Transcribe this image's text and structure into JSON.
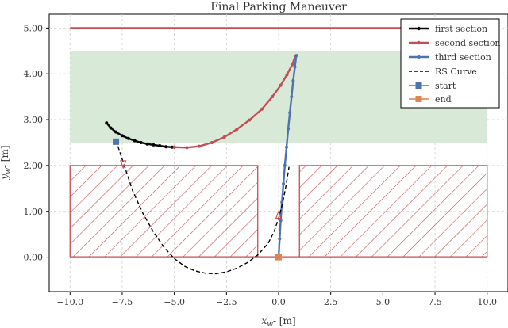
{
  "chart_data": {
    "type": "line",
    "title": "Final Parking Maneuver",
    "xlabel": "x_w- [m]",
    "ylabel": "y_w- [m]",
    "xlim": [
      -11.0,
      11.0
    ],
    "ylim": [
      -0.75,
      5.3
    ],
    "xticks": [
      -10.0,
      -7.5,
      -5.0,
      -2.5,
      0.0,
      2.5,
      5.0,
      7.5,
      10.0
    ],
    "xtick_labels": [
      "−10.0",
      "−7.5",
      "−5.0",
      "−2.5",
      "0.0",
      "2.5",
      "5.0",
      "7.5",
      "10.0"
    ],
    "yticks": [
      0.0,
      1.0,
      2.0,
      3.0,
      4.0,
      5.0
    ],
    "ytick_labels": [
      "0.00",
      "1.00",
      "2.00",
      "3.00",
      "4.00",
      "5.00"
    ],
    "grid": true,
    "legend_position": "top-right",
    "colors": {
      "first_section": "#000000",
      "second_section": "#c44e52",
      "third_section": "#4c72b0",
      "rs_curve": "#000000",
      "start": "#4c72b0",
      "end": "#dd8452",
      "road_line": "#c44e52",
      "target_region_fill": "#d6e8d6",
      "obstacle": "#c44e52"
    },
    "regions": {
      "target_region": {
        "x": [
          -10.0,
          10.0
        ],
        "y": [
          2.5,
          4.5
        ]
      },
      "road_top_line": {
        "x": [
          -10.0,
          10.0
        ],
        "y": 5.0
      },
      "road_bottom_line": {
        "x": [
          -10.0,
          10.0
        ],
        "y": 0.0
      },
      "obstacles": [
        {
          "x": [
            -10.0,
            -1.0
          ],
          "y": [
            0.0,
            2.0
          ]
        },
        {
          "x": [
            1.0,
            10.0
          ],
          "y": [
            0.0,
            2.0
          ]
        }
      ]
    },
    "series": [
      {
        "name": "first section",
        "style": "solid-dot",
        "x": [
          -8.25,
          -8.05,
          -7.8,
          -7.5,
          -7.2,
          -6.9,
          -6.6,
          -6.3,
          -6.0,
          -5.7,
          -5.4,
          -5.1,
          -5.0
        ],
        "y": [
          2.93,
          2.82,
          2.73,
          2.65,
          2.59,
          2.54,
          2.5,
          2.47,
          2.45,
          2.43,
          2.41,
          2.4,
          2.4
        ]
      },
      {
        "name": "second section",
        "style": "solid-dot",
        "x": [
          -5.0,
          -4.4,
          -3.8,
          -3.2,
          -2.6,
          -2.0,
          -1.4,
          -0.8,
          -0.3,
          0.1,
          0.4,
          0.65,
          0.8
        ],
        "y": [
          2.4,
          2.39,
          2.42,
          2.5,
          2.62,
          2.79,
          2.99,
          3.23,
          3.5,
          3.75,
          3.98,
          4.2,
          4.38
        ]
      },
      {
        "name": "third section",
        "style": "solid-dot",
        "x": [
          0.0,
          0.05,
          0.1,
          0.16,
          0.23,
          0.3,
          0.38,
          0.46,
          0.54,
          0.62,
          0.7,
          0.78,
          0.85
        ],
        "y": [
          0.0,
          0.4,
          0.8,
          1.2,
          1.6,
          2.0,
          2.4,
          2.8,
          3.15,
          3.5,
          3.85,
          4.15,
          4.4
        ]
      },
      {
        "name": "RS Curve",
        "style": "dashed",
        "x": [
          -7.8,
          -7.4,
          -7.0,
          -6.5,
          -6.0,
          -5.5,
          -5.0,
          -4.5,
          -4.0,
          -3.5,
          -3.0,
          -2.5,
          -2.0,
          -1.5,
          -1.0,
          -0.5,
          -0.2,
          0.0,
          0.2,
          0.35,
          0.5
        ],
        "y": [
          2.55,
          2.0,
          1.45,
          0.95,
          0.55,
          0.22,
          -0.03,
          -0.2,
          -0.3,
          -0.35,
          -0.36,
          -0.32,
          -0.24,
          -0.12,
          0.05,
          0.3,
          0.58,
          0.85,
          1.2,
          1.55,
          1.97
        ]
      },
      {
        "name": "start",
        "style": "marker-square",
        "x": [
          -7.8
        ],
        "y": [
          2.52
        ]
      },
      {
        "name": "end",
        "style": "marker-square",
        "x": [
          0.0
        ],
        "y": [
          0.0
        ]
      }
    ],
    "arrows": [
      {
        "from": [
          -7.45,
          2.15
        ],
        "to": [
          -7.45,
          2.0
        ]
      },
      {
        "from": [
          0.0,
          0.75
        ],
        "to": [
          0.0,
          0.95
        ]
      }
    ]
  }
}
